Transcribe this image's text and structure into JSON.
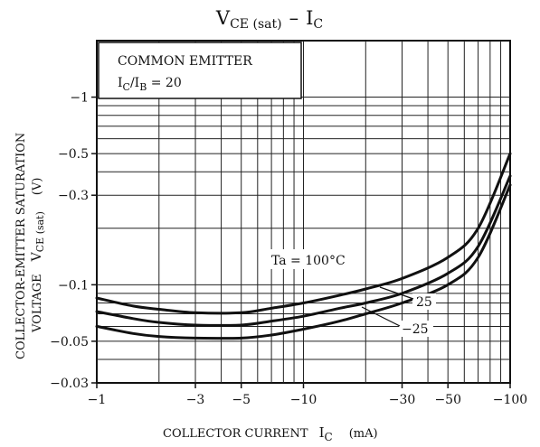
{
  "chart_data": {
    "type": "line",
    "title": {
      "lhs_main": "V",
      "lhs_sub": "CE (sat)",
      "dash": "–",
      "rhs_main": "I",
      "rhs_sub": "C"
    },
    "xlabel": {
      "text": "COLLECTOR CURRENT",
      "symbol_main": "I",
      "symbol_sub": "C",
      "unit": "(mA)"
    },
    "ylabel": {
      "line1": "COLLECTOR-EMITTER SATURATION",
      "line2_prefix": "VOLTAGE",
      "symbol_main": "V",
      "symbol_sub": "CE (sat)",
      "unit": "(V)"
    },
    "x_scale": "log",
    "y_scale": "log",
    "xlim": [
      -1,
      -100
    ],
    "ylim": [
      -0.03,
      -2
    ],
    "x_ticks": [
      {
        "value": -1,
        "label": "−1"
      },
      {
        "value": -3,
        "label": "−3"
      },
      {
        "value": -5,
        "label": "−5"
      },
      {
        "value": -10,
        "label": "−10"
      },
      {
        "value": -30,
        "label": "−30"
      },
      {
        "value": -50,
        "label": "−50"
      },
      {
        "value": -100,
        "label": "−100"
      }
    ],
    "y_ticks": [
      {
        "value": -0.03,
        "label": "−0.03"
      },
      {
        "value": -0.05,
        "label": "−0.05"
      },
      {
        "value": -0.1,
        "label": "−0.1"
      },
      {
        "value": -0.3,
        "label": "−0.3"
      },
      {
        "value": -0.5,
        "label": "−0.5"
      },
      {
        "value": -1,
        "label": "−1"
      }
    ],
    "grid": true,
    "legend_box": {
      "line1": "COMMON EMITTER",
      "line2_main": "I",
      "line2_sub1": "C",
      "line2_mid": "/I",
      "line2_sub2": "B",
      "line2_end": " = 20"
    },
    "series": [
      {
        "name": "Ta = 100°C",
        "x": [
          -1,
          -1.5,
          -2,
          -3,
          -5,
          -7,
          -10,
          -15,
          -20,
          -30,
          -50,
          -70,
          -100
        ],
        "y": [
          -0.085,
          -0.077,
          -0.074,
          -0.071,
          -0.071,
          -0.075,
          -0.08,
          -0.088,
          -0.095,
          -0.108,
          -0.14,
          -0.2,
          -0.5
        ]
      },
      {
        "name": "25",
        "x": [
          -1,
          -1.5,
          -2,
          -3,
          -5,
          -7,
          -10,
          -15,
          -20,
          -30,
          -50,
          -70,
          -100
        ],
        "y": [
          -0.072,
          -0.066,
          -0.063,
          -0.061,
          -0.061,
          -0.064,
          -0.068,
          -0.075,
          -0.08,
          -0.09,
          -0.115,
          -0.16,
          -0.38
        ]
      },
      {
        "name": "−25",
        "x": [
          -1,
          -1.5,
          -2,
          -3,
          -5,
          -7,
          -10,
          -15,
          -20,
          -30,
          -50,
          -70,
          -100
        ],
        "y": [
          -0.06,
          -0.055,
          -0.053,
          -0.052,
          -0.052,
          -0.054,
          -0.058,
          -0.064,
          -0.07,
          -0.08,
          -0.1,
          -0.14,
          -0.34
        ]
      }
    ]
  }
}
